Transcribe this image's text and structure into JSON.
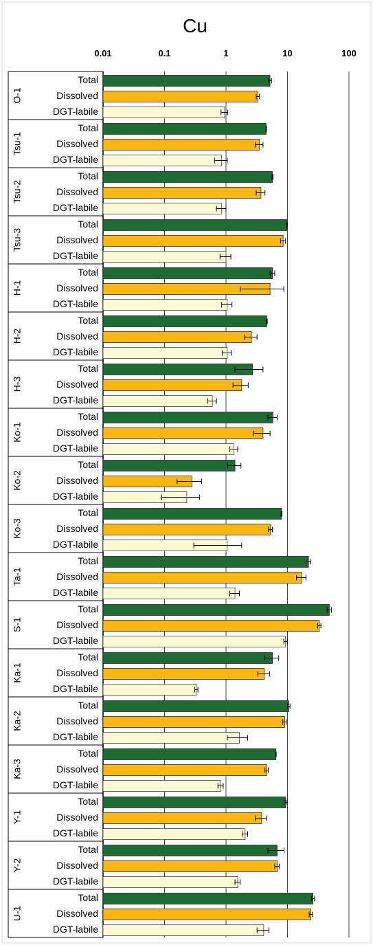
{
  "chart_data": {
    "type": "bar",
    "orientation": "horizontal",
    "title": "Cu",
    "xscale": "log",
    "xlim": [
      0.01,
      100
    ],
    "xticks": [
      "0.01",
      "0.1",
      "1",
      "10",
      "100"
    ],
    "grid": "major vertical",
    "bar_labels": [
      "Total",
      "Dissolved",
      "DGT-labile"
    ],
    "colors": {
      "Total": "#1e6b33",
      "Dissolved": "#fbb714",
      "DGT-labile": "#fdfbd3"
    },
    "sites": [
      {
        "site": "O-1",
        "values": [
          5.2,
          3.3,
          0.95
        ],
        "errors": [
          0.3,
          0.2,
          0.12
        ]
      },
      {
        "site": "Tsu-1",
        "values": [
          4.5,
          3.5,
          0.85
        ],
        "errors": [
          0.05,
          0.5,
          0.2
        ]
      },
      {
        "site": "Tsu-2",
        "values": [
          5.7,
          3.7,
          0.85
        ],
        "errors": [
          0.1,
          0.6,
          0.15
        ]
      },
      {
        "site": "Tsu-3",
        "values": [
          9.8,
          8.5,
          1.0
        ],
        "errors": [
          0.1,
          0.8,
          0.2
        ]
      },
      {
        "site": "H-1",
        "values": [
          5.7,
          5.2,
          1.05
        ],
        "errors": [
          0.5,
          3.5,
          0.2
        ]
      },
      {
        "site": "H-2",
        "values": [
          4.6,
          2.6,
          1.05
        ],
        "errors": [
          0.1,
          0.6,
          0.18
        ]
      },
      {
        "site": "H-3",
        "values": [
          2.7,
          1.8,
          0.6
        ],
        "errors": [
          1.3,
          0.5,
          0.1
        ]
      },
      {
        "site": "Ko-1",
        "values": [
          5.8,
          4.0,
          1.35
        ],
        "errors": [
          1.0,
          1.2,
          0.2
        ]
      },
      {
        "site": "Ko-2",
        "values": [
          1.4,
          0.28,
          0.23
        ],
        "errors": [
          0.35,
          0.12,
          0.14
        ]
      },
      {
        "site": "Ko-3",
        "values": [
          8.0,
          5.3,
          1.05
        ],
        "errors": [
          0.15,
          0.4,
          0.75
        ]
      },
      {
        "site": "Ta-1",
        "values": [
          22,
          17,
          1.4
        ],
        "errors": [
          2,
          3,
          0.25
        ]
      },
      {
        "site": "S-1",
        "values": [
          48,
          33,
          9.3
        ],
        "errors": [
          4,
          2,
          0.6
        ]
      },
      {
        "site": "Ka-1",
        "values": [
          5.7,
          4.2,
          0.33
        ],
        "errors": [
          1.5,
          0.9,
          0.02
        ]
      },
      {
        "site": "Ka-2",
        "values": [
          10.5,
          9.0,
          1.65
        ],
        "errors": [
          0.5,
          0.6,
          0.6
        ]
      },
      {
        "site": "Ka-3",
        "values": [
          6.5,
          4.6,
          0.82
        ],
        "errors": [
          0.05,
          0.3,
          0.08
        ]
      },
      {
        "site": "Y-1",
        "values": [
          9.3,
          3.8,
          2.05
        ],
        "errors": [
          0.5,
          0.8,
          0.2
        ]
      },
      {
        "site": "Y-2",
        "values": [
          6.8,
          6.8,
          1.55
        ],
        "errors": [
          2.0,
          0.6,
          0.15
        ]
      },
      {
        "site": "U-1",
        "values": [
          26,
          24,
          4.1
        ],
        "errors": [
          1.5,
          1.5,
          0.9
        ]
      }
    ]
  }
}
